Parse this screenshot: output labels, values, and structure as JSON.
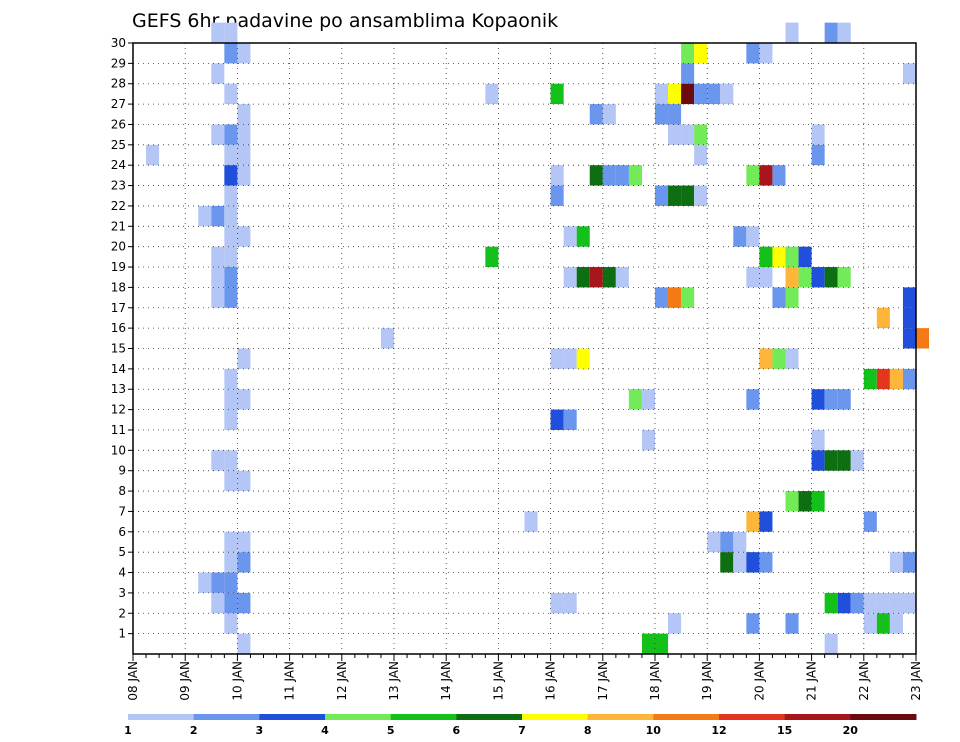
{
  "chart_data": {
    "type": "heatmap",
    "title": "GEFS 6hr padavine po ansamblima Kopaonik",
    "y_members": [
      1,
      2,
      3,
      4,
      5,
      6,
      7,
      8,
      9,
      10,
      11,
      12,
      13,
      14,
      15,
      16,
      17,
      18,
      19,
      20,
      21,
      22,
      23,
      24,
      25,
      26,
      27,
      28,
      29,
      30
    ],
    "x_date_labels": [
      "08 JAN",
      "09 JAN",
      "10 JAN",
      "11 JAN",
      "12 JAN",
      "13 JAN",
      "14 JAN",
      "15 JAN",
      "16 JAN",
      "17 JAN",
      "18 JAN",
      "19 JAN",
      "20 JAN",
      "21 JAN",
      "22 JAN",
      "23 JAN"
    ],
    "time_step": "6hr",
    "color_levels": [
      1,
      2,
      3,
      4,
      5,
      6,
      7,
      8,
      10,
      12,
      15,
      20
    ],
    "colors": [
      "#b3c6f5",
      "#6b96ee",
      "#1f4fdb",
      "#73ea58",
      "#14c11b",
      "#0d6f12",
      "#ffff00",
      "#fdb63a",
      "#f47a16",
      "#e3361f",
      "#a8151b",
      "#6b0b10"
    ],
    "grid": true,
    "legend_placement": "bottom",
    "cells": [
      {
        "m": 30,
        "t": 1.5,
        "c": 1
      },
      {
        "m": 30,
        "t": 1.75,
        "c": 1
      },
      {
        "m": 30,
        "t": 12.5,
        "c": 1
      },
      {
        "m": 30,
        "t": 13.25,
        "c": 2
      },
      {
        "m": 30,
        "t": 13.5,
        "c": 1
      },
      {
        "m": 29,
        "t": 1.75,
        "c": 2
      },
      {
        "m": 29,
        "t": 2.0,
        "c": 1
      },
      {
        "m": 29,
        "t": 10.5,
        "c": 4
      },
      {
        "m": 29,
        "t": 10.75,
        "c": 7
      },
      {
        "m": 29,
        "t": 11.75,
        "c": 2
      },
      {
        "m": 29,
        "t": 12.0,
        "c": 1
      },
      {
        "m": 28,
        "t": 1.5,
        "c": 1
      },
      {
        "m": 28,
        "t": 10.5,
        "c": 2
      },
      {
        "m": 28,
        "t": 14.75,
        "c": 1
      },
      {
        "m": 27,
        "t": 1.75,
        "c": 1
      },
      {
        "m": 27,
        "t": 6.75,
        "c": 1
      },
      {
        "m": 27,
        "t": 8.0,
        "c": 5
      },
      {
        "m": 27,
        "t": 10.0,
        "c": 1
      },
      {
        "m": 27,
        "t": 10.25,
        "c": 7
      },
      {
        "m": 27,
        "t": 10.5,
        "c": 12
      },
      {
        "m": 27,
        "t": 10.75,
        "c": 2
      },
      {
        "m": 27,
        "t": 11.0,
        "c": 2
      },
      {
        "m": 27,
        "t": 11.25,
        "c": 1
      },
      {
        "m": 26,
        "t": 2.0,
        "c": 1
      },
      {
        "m": 26,
        "t": 8.75,
        "c": 2
      },
      {
        "m": 26,
        "t": 9.0,
        "c": 1
      },
      {
        "m": 26,
        "t": 10.0,
        "c": 2
      },
      {
        "m": 26,
        "t": 10.25,
        "c": 2
      },
      {
        "m": 25,
        "t": 1.5,
        "c": 1
      },
      {
        "m": 25,
        "t": 1.75,
        "c": 2
      },
      {
        "m": 25,
        "t": 2.0,
        "c": 1
      },
      {
        "m": 25,
        "t": 10.25,
        "c": 1
      },
      {
        "m": 25,
        "t": 10.5,
        "c": 1
      },
      {
        "m": 25,
        "t": 10.75,
        "c": 4
      },
      {
        "m": 25,
        "t": 13.0,
        "c": 1
      },
      {
        "m": 24,
        "t": 0.25,
        "c": 1
      },
      {
        "m": 24,
        "t": 1.75,
        "c": 1
      },
      {
        "m": 24,
        "t": 2.0,
        "c": 1
      },
      {
        "m": 24,
        "t": 10.75,
        "c": 1
      },
      {
        "m": 24,
        "t": 13.0,
        "c": 2
      },
      {
        "m": 23,
        "t": 1.75,
        "c": 3
      },
      {
        "m": 23,
        "t": 2.0,
        "c": 1
      },
      {
        "m": 23,
        "t": 8.0,
        "c": 1
      },
      {
        "m": 23,
        "t": 8.75,
        "c": 6
      },
      {
        "m": 23,
        "t": 9.0,
        "c": 2
      },
      {
        "m": 23,
        "t": 9.25,
        "c": 2
      },
      {
        "m": 23,
        "t": 9.5,
        "c": 4
      },
      {
        "m": 23,
        "t": 11.75,
        "c": 4
      },
      {
        "m": 23,
        "t": 12.0,
        "c": 11
      },
      {
        "m": 23,
        "t": 12.25,
        "c": 2
      },
      {
        "m": 22,
        "t": 1.75,
        "c": 1
      },
      {
        "m": 22,
        "t": 8.0,
        "c": 2
      },
      {
        "m": 22,
        "t": 10.0,
        "c": 2
      },
      {
        "m": 22,
        "t": 10.25,
        "c": 6
      },
      {
        "m": 22,
        "t": 10.5,
        "c": 6
      },
      {
        "m": 22,
        "t": 10.75,
        "c": 1
      },
      {
        "m": 21,
        "t": 1.25,
        "c": 1
      },
      {
        "m": 21,
        "t": 1.5,
        "c": 2
      },
      {
        "m": 21,
        "t": 1.75,
        "c": 1
      },
      {
        "m": 20,
        "t": 1.75,
        "c": 1
      },
      {
        "m": 20,
        "t": 2.0,
        "c": 1
      },
      {
        "m": 20,
        "t": 8.25,
        "c": 1
      },
      {
        "m": 20,
        "t": 8.5,
        "c": 5
      },
      {
        "m": 20,
        "t": 11.5,
        "c": 2
      },
      {
        "m": 20,
        "t": 11.75,
        "c": 1
      },
      {
        "m": 19,
        "t": 1.5,
        "c": 1
      },
      {
        "m": 19,
        "t": 1.75,
        "c": 1
      },
      {
        "m": 19,
        "t": 6.75,
        "c": 5
      },
      {
        "m": 19,
        "t": 12.0,
        "c": 5
      },
      {
        "m": 19,
        "t": 12.25,
        "c": 7
      },
      {
        "m": 19,
        "t": 12.5,
        "c": 4
      },
      {
        "m": 19,
        "t": 12.75,
        "c": 3
      },
      {
        "m": 18,
        "t": 1.5,
        "c": 1
      },
      {
        "m": 18,
        "t": 1.75,
        "c": 2
      },
      {
        "m": 18,
        "t": 8.25,
        "c": 1
      },
      {
        "m": 18,
        "t": 8.5,
        "c": 6
      },
      {
        "m": 18,
        "t": 8.75,
        "c": 11
      },
      {
        "m": 18,
        "t": 9.0,
        "c": 6
      },
      {
        "m": 18,
        "t": 9.25,
        "c": 1
      },
      {
        "m": 18,
        "t": 11.75,
        "c": 1
      },
      {
        "m": 18,
        "t": 12.0,
        "c": 1
      },
      {
        "m": 18,
        "t": 12.5,
        "c": 8
      },
      {
        "m": 18,
        "t": 12.75,
        "c": 4
      },
      {
        "m": 18,
        "t": 13.0,
        "c": 3
      },
      {
        "m": 18,
        "t": 13.25,
        "c": 6
      },
      {
        "m": 18,
        "t": 13.5,
        "c": 4
      },
      {
        "m": 17,
        "t": 1.5,
        "c": 1
      },
      {
        "m": 17,
        "t": 1.75,
        "c": 2
      },
      {
        "m": 17,
        "t": 10.0,
        "c": 2
      },
      {
        "m": 17,
        "t": 10.25,
        "c": 9
      },
      {
        "m": 17,
        "t": 10.5,
        "c": 4
      },
      {
        "m": 17,
        "t": 12.25,
        "c": 2
      },
      {
        "m": 17,
        "t": 12.5,
        "c": 4
      },
      {
        "m": 17,
        "t": 14.75,
        "c": 3
      },
      {
        "m": 16,
        "t": 14.25,
        "c": 8
      },
      {
        "m": 16,
        "t": 14.75,
        "c": 3
      },
      {
        "m": 15,
        "t": 4.75,
        "c": 1
      },
      {
        "m": 15,
        "t": 14.75,
        "c": 3
      },
      {
        "m": 15,
        "t": 15.0,
        "c": 9
      },
      {
        "m": 14,
        "t": 2.0,
        "c": 1
      },
      {
        "m": 14,
        "t": 8.0,
        "c": 1
      },
      {
        "m": 14,
        "t": 8.25,
        "c": 1
      },
      {
        "m": 14,
        "t": 8.5,
        "c": 7
      },
      {
        "m": 14,
        "t": 12.0,
        "c": 8
      },
      {
        "m": 14,
        "t": 12.25,
        "c": 4
      },
      {
        "m": 14,
        "t": 12.5,
        "c": 1
      },
      {
        "m": 13,
        "t": 1.75,
        "c": 1
      },
      {
        "m": 13,
        "t": 14.0,
        "c": 5
      },
      {
        "m": 13,
        "t": 14.25,
        "c": 10
      },
      {
        "m": 13,
        "t": 14.5,
        "c": 8
      },
      {
        "m": 13,
        "t": 14.75,
        "c": 2
      },
      {
        "m": 12,
        "t": 1.75,
        "c": 1
      },
      {
        "m": 12,
        "t": 2.0,
        "c": 1
      },
      {
        "m": 12,
        "t": 9.5,
        "c": 4
      },
      {
        "m": 12,
        "t": 9.75,
        "c": 1
      },
      {
        "m": 12,
        "t": 11.75,
        "c": 2
      },
      {
        "m": 12,
        "t": 13.0,
        "c": 3
      },
      {
        "m": 12,
        "t": 13.25,
        "c": 2
      },
      {
        "m": 12,
        "t": 13.5,
        "c": 2
      },
      {
        "m": 11,
        "t": 1.75,
        "c": 1
      },
      {
        "m": 11,
        "t": 8.0,
        "c": 3
      },
      {
        "m": 11,
        "t": 8.25,
        "c": 2
      },
      {
        "m": 10,
        "t": 9.75,
        "c": 1
      },
      {
        "m": 10,
        "t": 13.0,
        "c": 1
      },
      {
        "m": 9,
        "t": 1.5,
        "c": 1
      },
      {
        "m": 9,
        "t": 1.75,
        "c": 1
      },
      {
        "m": 9,
        "t": 13.0,
        "c": 3
      },
      {
        "m": 9,
        "t": 13.25,
        "c": 6
      },
      {
        "m": 9,
        "t": 13.5,
        "c": 6
      },
      {
        "m": 9,
        "t": 13.75,
        "c": 1
      },
      {
        "m": 8,
        "t": 1.75,
        "c": 1
      },
      {
        "m": 8,
        "t": 2.0,
        "c": 1
      },
      {
        "m": 7,
        "t": 12.5,
        "c": 4
      },
      {
        "m": 7,
        "t": 12.75,
        "c": 6
      },
      {
        "m": 7,
        "t": 13.0,
        "c": 5
      },
      {
        "m": 6,
        "t": 7.5,
        "c": 1
      },
      {
        "m": 6,
        "t": 11.75,
        "c": 8
      },
      {
        "m": 6,
        "t": 12.0,
        "c": 3
      },
      {
        "m": 6,
        "t": 14.0,
        "c": 2
      },
      {
        "m": 5,
        "t": 1.75,
        "c": 1
      },
      {
        "m": 5,
        "t": 2.0,
        "c": 1
      },
      {
        "m": 5,
        "t": 11.0,
        "c": 1
      },
      {
        "m": 5,
        "t": 11.25,
        "c": 2
      },
      {
        "m": 5,
        "t": 11.5,
        "c": 1
      },
      {
        "m": 4,
        "t": 1.75,
        "c": 1
      },
      {
        "m": 4,
        "t": 2.0,
        "c": 2
      },
      {
        "m": 4,
        "t": 11.25,
        "c": 6
      },
      {
        "m": 4,
        "t": 11.5,
        "c": 1
      },
      {
        "m": 4,
        "t": 11.75,
        "c": 3
      },
      {
        "m": 4,
        "t": 12.0,
        "c": 2
      },
      {
        "m": 4,
        "t": 14.5,
        "c": 1
      },
      {
        "m": 4,
        "t": 14.75,
        "c": 2
      },
      {
        "m": 3,
        "t": 1.25,
        "c": 1
      },
      {
        "m": 3,
        "t": 1.5,
        "c": 2
      },
      {
        "m": 3,
        "t": 1.75,
        "c": 2
      },
      {
        "m": 2,
        "t": 1.5,
        "c": 1
      },
      {
        "m": 2,
        "t": 1.75,
        "c": 2
      },
      {
        "m": 2,
        "t": 2.0,
        "c": 2
      },
      {
        "m": 2,
        "t": 8.0,
        "c": 1
      },
      {
        "m": 2,
        "t": 8.25,
        "c": 1
      },
      {
        "m": 2,
        "t": 13.25,
        "c": 5
      },
      {
        "m": 2,
        "t": 13.5,
        "c": 3
      },
      {
        "m": 2,
        "t": 13.75,
        "c": 2
      },
      {
        "m": 2,
        "t": 14.0,
        "c": 1
      },
      {
        "m": 2,
        "t": 14.25,
        "c": 1
      },
      {
        "m": 2,
        "t": 14.5,
        "c": 1
      },
      {
        "m": 2,
        "t": 14.75,
        "c": 1
      },
      {
        "m": 1,
        "t": 1.75,
        "c": 1
      },
      {
        "m": 1,
        "t": 10.25,
        "c": 1
      },
      {
        "m": 1,
        "t": 11.75,
        "c": 2
      },
      {
        "m": 1,
        "t": 12.5,
        "c": 2
      },
      {
        "m": 1,
        "t": 14.0,
        "c": 1
      },
      {
        "m": 1,
        "t": 14.25,
        "c": 5
      },
      {
        "m": 1,
        "t": 14.5,
        "c": 1
      },
      {
        "m": 0,
        "t": 2.0,
        "c": 1
      },
      {
        "m": 0,
        "t": 9.75,
        "c": 5
      },
      {
        "m": 0,
        "t": 10.0,
        "c": 5
      },
      {
        "m": 0,
        "t": 13.25,
        "c": 1
      }
    ]
  }
}
